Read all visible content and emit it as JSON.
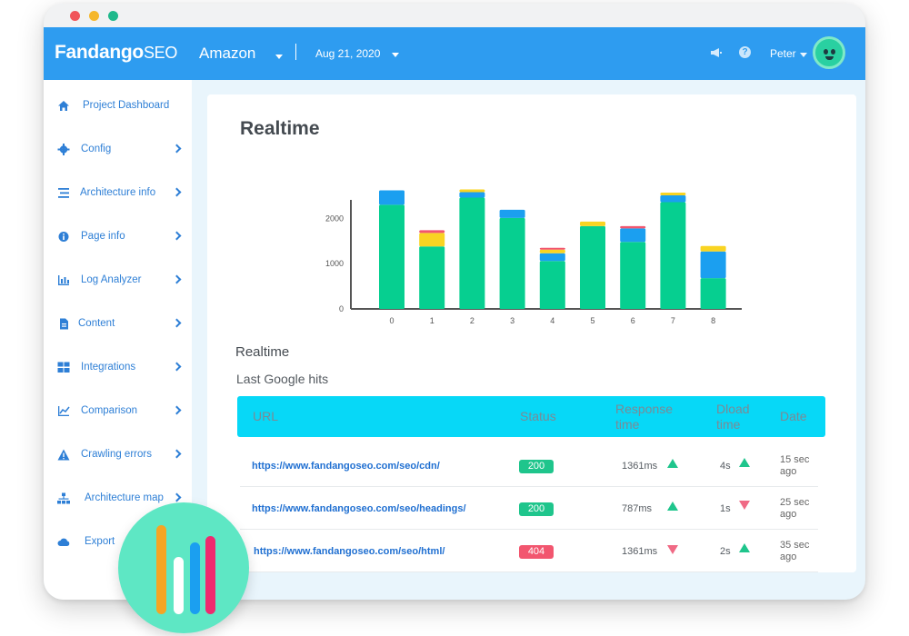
{
  "header": {
    "logo_main": "Fandango",
    "logo_suffix": "SEO",
    "project": "Amazon",
    "date": "Aug 21, 2020",
    "user": "Peter"
  },
  "sidebar": {
    "items": [
      {
        "label": "Project Dashboard",
        "icon": "home-icon"
      },
      {
        "label": "Config",
        "icon": "gear-icon"
      },
      {
        "label": "Architecture info",
        "icon": "list-icon"
      },
      {
        "label": "Page info",
        "icon": "info-icon"
      },
      {
        "label": "Log Analyzer",
        "icon": "bar-chart-icon"
      },
      {
        "label": "Content",
        "icon": "document-icon"
      },
      {
        "label": "Integrations",
        "icon": "grid-icon"
      },
      {
        "label": "Comparison",
        "icon": "line-chart-icon"
      },
      {
        "label": "Crawling errors",
        "icon": "warning-icon"
      },
      {
        "label": "Architecture map",
        "icon": "sitemap-icon"
      },
      {
        "label": "Export",
        "icon": "cloud-icon"
      }
    ]
  },
  "main": {
    "title": "Realtime",
    "section_title": "Realtime",
    "section_subtitle": "Last Google hits"
  },
  "chart_data": {
    "type": "bar",
    "stacked": true,
    "categories": [
      "0",
      "1",
      "2",
      "3",
      "4",
      "5",
      "6",
      "7",
      "8"
    ],
    "yticks": [
      "0",
      "1000",
      "2000"
    ],
    "ylim": [
      0,
      2650
    ],
    "grid": false,
    "series": [
      {
        "values": [
          2300,
          1380,
          2460,
          2010,
          1060,
          1830,
          1480,
          2360,
          680
        ]
      },
      {
        "values": [
          320,
          0,
          120,
          180,
          170,
          0,
          300,
          150,
          590
        ]
      },
      {
        "values": [
          0,
          300,
          60,
          0,
          80,
          100,
          0,
          60,
          120
        ]
      },
      {
        "values": [
          0,
          60,
          0,
          0,
          40,
          0,
          50,
          0,
          0
        ]
      }
    ],
    "colors": [
      "#06cf90",
      "#1b9ff0",
      "#f9d422",
      "#f2566f"
    ]
  },
  "table": {
    "headers": {
      "url": "URL",
      "status": "Status",
      "response_l1": "Response",
      "response_l2": "time",
      "dload_l1": "Dload",
      "dload_l2": "time",
      "date": "Date"
    },
    "rows": [
      {
        "url": "https://www.fandangoseo.com/seo/cdn/",
        "status": "200",
        "status_color": "#1fc58c",
        "response": "1361ms",
        "response_trend": "up",
        "dload": "4s",
        "dload_trend": "up",
        "date_l1": "15 sec",
        "date_l2": "ago"
      },
      {
        "url": "https://www.fandangoseo.com/seo/headings/",
        "status": "200",
        "status_color": "#1fc58c",
        "response": "787ms",
        "response_trend": "up",
        "dload": "1s",
        "dload_trend": "down",
        "date_l1": "25 sec",
        "date_l2": "ago"
      },
      {
        "url": "https://www.fandangoseo.com/seo/html/",
        "status": "404",
        "status_color": "#f2566f",
        "response": "1361ms",
        "response_trend": "down",
        "dload": "2s",
        "dload_trend": "up",
        "date_l1": "35 sec",
        "date_l2": "ago"
      }
    ]
  },
  "colors": {
    "header_bg": "#2e9cf0",
    "table_header_bg": "#07d8f7",
    "link": "#1f6fd1",
    "fab": "#5ee7c4"
  }
}
